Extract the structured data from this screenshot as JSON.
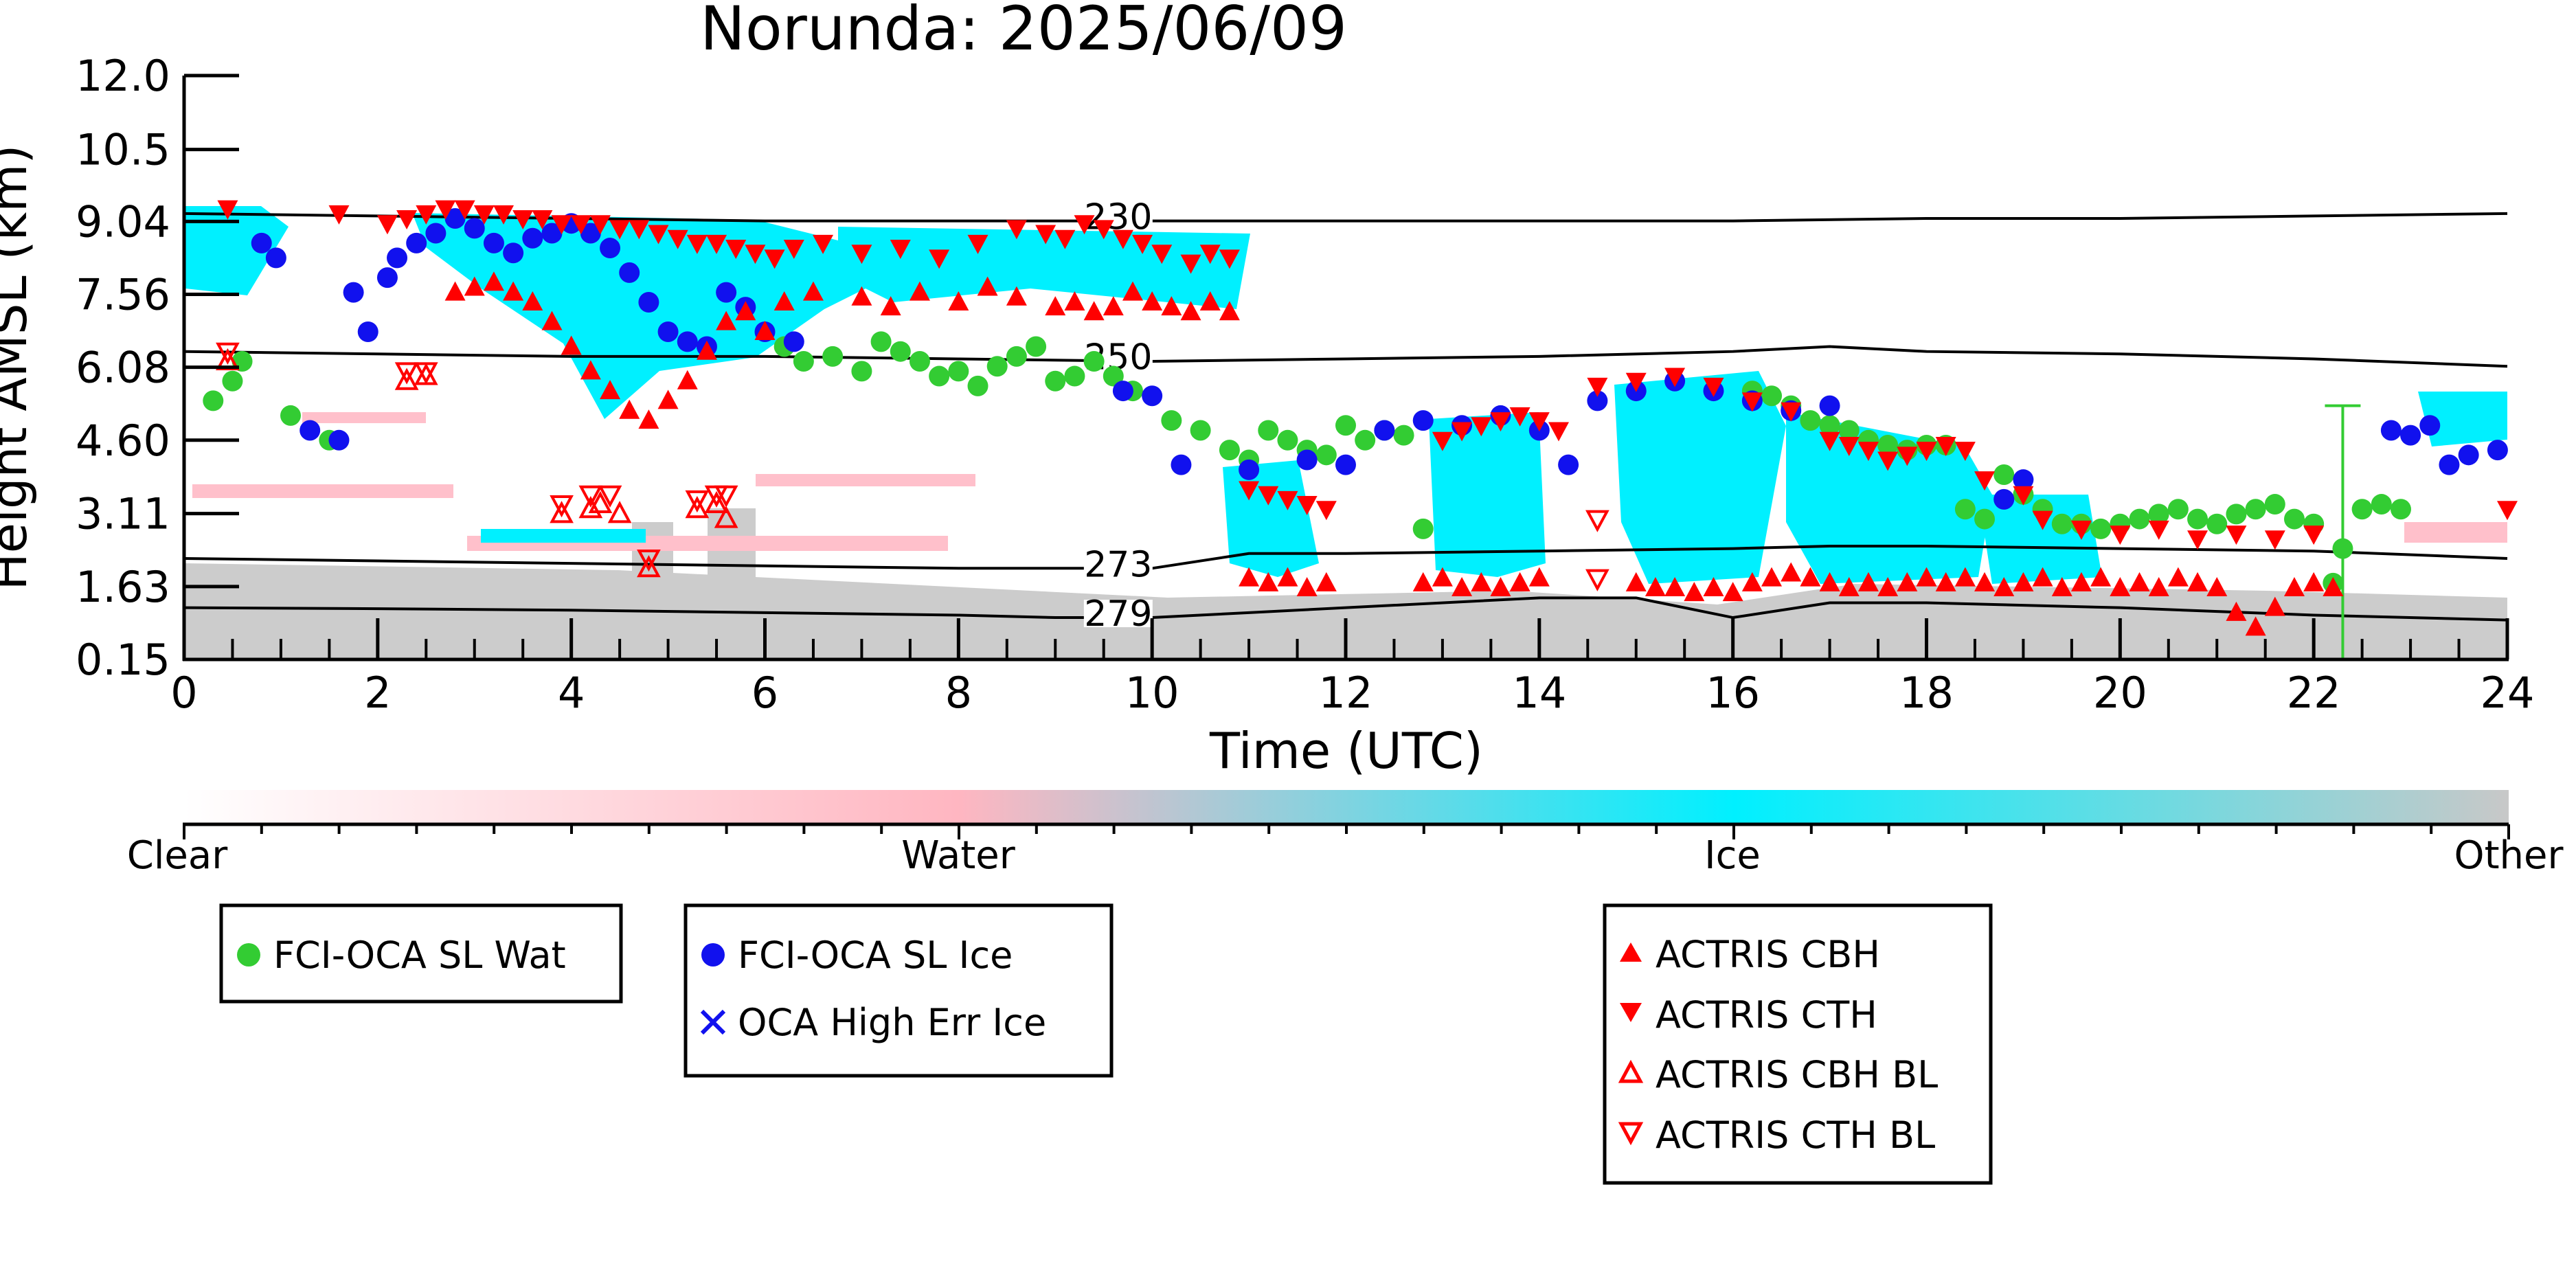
{
  "chart_data": {
    "type": "scatter",
    "title": "Norunda: 2025/06/09",
    "xlabel": "Time (UTC)",
    "ylabel": "Height AMSL (km)",
    "xlim": [
      0,
      24
    ],
    "ylim": [
      0.15,
      12.0
    ],
    "xticks": [
      "0",
      "2",
      "4",
      "6",
      "8",
      "10",
      "12",
      "14",
      "16",
      "18",
      "20",
      "22",
      "24"
    ],
    "yticks": [
      "0.15",
      "1.63",
      "3.11",
      "4.60",
      "6.08",
      "7.56",
      "9.04",
      "10.5",
      "12.0"
    ],
    "colorbar": {
      "labels": [
        "Clear",
        "Water",
        "Ice",
        "Other"
      ],
      "colors": [
        "#ffffff",
        "#ffb6c1",
        "#00f0ff",
        "#c8c8c8"
      ]
    },
    "isotherms": [
      {
        "label": "230",
        "x": [
          0,
          2,
          4,
          6,
          8,
          10,
          12,
          14,
          16,
          18,
          20,
          22,
          24
        ],
        "y": [
          9.2,
          9.15,
          9.1,
          9.05,
          9.05,
          9.05,
          9.05,
          9.05,
          9.05,
          9.1,
          9.1,
          9.15,
          9.2
        ]
      },
      {
        "label": "250",
        "x": [
          0,
          2,
          4,
          6,
          8,
          10,
          12,
          14,
          16,
          17,
          18,
          20,
          22,
          24
        ],
        "y": [
          6.4,
          6.35,
          6.3,
          6.3,
          6.25,
          6.2,
          6.25,
          6.3,
          6.4,
          6.5,
          6.4,
          6.35,
          6.25,
          6.1
        ]
      },
      {
        "label": "273",
        "x": [
          0,
          2,
          4,
          6,
          8,
          10,
          11,
          12,
          14,
          16,
          17,
          18,
          20,
          22,
          24
        ],
        "y": [
          2.2,
          2.15,
          2.1,
          2.05,
          2.0,
          2.0,
          2.3,
          2.3,
          2.35,
          2.4,
          2.45,
          2.45,
          2.4,
          2.35,
          2.2
        ]
      },
      {
        "label": "279",
        "x": [
          0,
          2,
          4,
          6,
          8,
          9,
          10,
          11,
          12,
          14,
          15,
          16,
          17,
          18,
          20,
          22,
          24
        ],
        "y": [
          1.2,
          1.18,
          1.15,
          1.1,
          1.05,
          1.0,
          1.0,
          1.1,
          1.2,
          1.4,
          1.4,
          1.0,
          1.3,
          1.3,
          1.2,
          1.05,
          0.95
        ]
      }
    ],
    "series": [
      {
        "name": "FCI-OCA SL Wat",
        "color": "#33cc33",
        "marker": "circle",
        "x": [
          0.3,
          0.5,
          0.6,
          1.1,
          1.5,
          6.2,
          6.4,
          6.7,
          7.0,
          7.2,
          7.4,
          7.6,
          7.8,
          8.0,
          8.2,
          8.4,
          8.6,
          8.8,
          9.0,
          9.2,
          9.4,
          9.6,
          9.8,
          10.2,
          10.5,
          10.8,
          11.0,
          11.2,
          11.4,
          11.6,
          11.8,
          12.0,
          12.2,
          12.4,
          12.6,
          12.8,
          16.2,
          16.4,
          16.6,
          16.8,
          17.0,
          17.2,
          17.4,
          17.6,
          17.8,
          18.0,
          18.2,
          18.4,
          18.6,
          18.8,
          19.0,
          19.2,
          19.4,
          19.6,
          19.8,
          20.0,
          20.2,
          20.4,
          20.6,
          20.8,
          21.0,
          21.2,
          21.4,
          21.6,
          21.8,
          22.0,
          22.2,
          22.3,
          22.5,
          22.7,
          22.9
        ],
        "y": [
          5.4,
          5.8,
          6.2,
          5.1,
          4.6,
          6.5,
          6.2,
          6.3,
          6.0,
          6.6,
          6.4,
          6.2,
          5.9,
          6.0,
          5.7,
          6.1,
          6.3,
          6.5,
          5.8,
          5.9,
          6.2,
          5.9,
          5.6,
          5.0,
          4.8,
          4.4,
          4.2,
          4.8,
          4.6,
          4.4,
          4.3,
          4.9,
          4.6,
          4.8,
          4.7,
          2.8,
          5.6,
          5.5,
          5.3,
          5.0,
          4.9,
          4.8,
          4.6,
          4.5,
          4.4,
          4.5,
          4.5,
          3.2,
          3.0,
          3.9,
          3.5,
          3.2,
          2.9,
          2.9,
          2.8,
          2.9,
          3.0,
          3.1,
          3.2,
          3.0,
          2.9,
          3.1,
          3.2,
          3.3,
          3.0,
          2.9,
          1.7,
          2.4,
          3.2,
          3.3,
          3.2
        ],
        "errorbars": [
          {
            "x": 22.3,
            "y": 1.7,
            "ylow": 0.15,
            "yhigh": 5.3
          }
        ]
      },
      {
        "name": "FCI-OCA SL Ice",
        "color": "#1111ee",
        "marker": "circle",
        "x": [
          0.8,
          0.95,
          1.3,
          1.6,
          1.75,
          1.9,
          2.1,
          2.2,
          2.4,
          2.6,
          2.8,
          3.0,
          3.2,
          3.4,
          3.6,
          3.8,
          4.0,
          4.2,
          4.4,
          4.6,
          4.8,
          5.0,
          5.2,
          5.4,
          5.6,
          5.8,
          6.0,
          6.3,
          9.7,
          10.0,
          10.3,
          11.0,
          11.6,
          12.0,
          12.4,
          12.8,
          13.2,
          13.6,
          14.0,
          14.3,
          14.6,
          15.0,
          15.4,
          15.8,
          16.2,
          16.6,
          17.0,
          18.8,
          19.0,
          22.8,
          23.0,
          23.2,
          23.4,
          23.6,
          23.9
        ],
        "y": [
          8.6,
          8.3,
          4.8,
          4.6,
          7.6,
          6.8,
          7.9,
          8.3,
          8.6,
          8.8,
          9.1,
          8.9,
          8.6,
          8.4,
          8.7,
          8.8,
          9.0,
          8.8,
          8.5,
          8.0,
          7.4,
          6.8,
          6.6,
          6.5,
          7.6,
          7.3,
          6.8,
          6.6,
          5.6,
          5.5,
          4.1,
          4.0,
          4.2,
          4.1,
          4.8,
          5.0,
          4.9,
          5.1,
          4.8,
          4.1,
          5.4,
          5.6,
          5.8,
          5.6,
          5.4,
          5.2,
          5.3,
          3.4,
          3.8,
          4.8,
          4.7,
          4.9,
          4.1,
          4.3,
          4.4
        ]
      },
      {
        "name": "OCA High Err Ice",
        "color": "#1111ee",
        "marker": "x",
        "x": [],
        "y": []
      },
      {
        "name": "ACTRIS CBH",
        "color": "#ff0000",
        "marker": "triangle-up",
        "x": [
          2.8,
          3.0,
          3.2,
          3.4,
          3.6,
          3.8,
          4.0,
          4.2,
          4.4,
          4.6,
          4.8,
          5.0,
          5.2,
          5.4,
          5.6,
          5.8,
          6.0,
          6.2,
          6.5,
          7.0,
          7.3,
          7.6,
          8.0,
          8.3,
          8.6,
          9.0,
          9.2,
          9.4,
          9.6,
          9.8,
          10.0,
          10.2,
          10.4,
          10.6,
          10.8,
          11.0,
          11.2,
          11.4,
          11.6,
          11.8,
          12.8,
          13.0,
          13.2,
          13.4,
          13.6,
          13.8,
          14.0,
          15.0,
          15.2,
          15.4,
          15.6,
          15.8,
          16.0,
          16.2,
          16.4,
          16.6,
          16.8,
          17.0,
          17.2,
          17.4,
          17.6,
          17.8,
          18.0,
          18.2,
          18.4,
          18.6,
          18.8,
          19.0,
          19.2,
          19.4,
          19.6,
          19.8,
          20.0,
          20.2,
          20.4,
          20.6,
          20.8,
          21.0,
          21.2,
          21.4,
          21.6,
          21.8,
          22.0,
          22.2
        ],
        "y": [
          7.6,
          7.7,
          7.8,
          7.6,
          7.4,
          7.0,
          6.5,
          6.0,
          5.6,
          5.2,
          5.0,
          5.4,
          5.8,
          6.4,
          7.0,
          7.2,
          6.8,
          7.4,
          7.6,
          7.5,
          7.3,
          7.6,
          7.4,
          7.7,
          7.5,
          7.3,
          7.4,
          7.2,
          7.3,
          7.6,
          7.4,
          7.3,
          7.2,
          7.4,
          7.2,
          1.8,
          1.7,
          1.8,
          1.6,
          1.7,
          1.7,
          1.8,
          1.6,
          1.7,
          1.6,
          1.7,
          1.8,
          1.7,
          1.6,
          1.6,
          1.5,
          1.6,
          1.5,
          1.7,
          1.8,
          1.9,
          1.8,
          1.7,
          1.6,
          1.7,
          1.6,
          1.7,
          1.8,
          1.7,
          1.8,
          1.7,
          1.6,
          1.7,
          1.8,
          1.6,
          1.7,
          1.8,
          1.6,
          1.7,
          1.6,
          1.8,
          1.7,
          1.6,
          1.1,
          0.8,
          1.2,
          1.6,
          1.7,
          1.6
        ]
      },
      {
        "name": "ACTRIS CTH",
        "color": "#ff0000",
        "marker": "triangle-down",
        "x": [
          0.45,
          1.6,
          2.1,
          2.3,
          2.5,
          2.7,
          2.9,
          3.1,
          3.3,
          3.5,
          3.7,
          3.9,
          4.1,
          4.3,
          4.5,
          4.7,
          4.9,
          5.1,
          5.3,
          5.5,
          5.7,
          5.9,
          6.1,
          6.3,
          6.6,
          7.0,
          7.4,
          7.8,
          8.2,
          8.6,
          8.9,
          9.1,
          9.3,
          9.5,
          9.7,
          9.9,
          10.1,
          10.4,
          10.6,
          10.8,
          11.0,
          11.2,
          11.4,
          11.6,
          11.8,
          13.0,
          13.2,
          13.4,
          13.6,
          13.8,
          14.0,
          14.2,
          14.6,
          15.0,
          15.4,
          15.8,
          16.2,
          16.6,
          17.0,
          17.2,
          17.4,
          17.6,
          17.8,
          18.0,
          18.2,
          18.4,
          18.6,
          19.0,
          19.2,
          19.6,
          20.0,
          20.4,
          20.8,
          21.2,
          21.6,
          22.0,
          24.0
        ],
        "y": [
          9.3,
          9.2,
          9.0,
          9.1,
          9.2,
          9.3,
          9.3,
          9.2,
          9.2,
          9.1,
          9.1,
          9.0,
          9.0,
          9.0,
          8.9,
          8.9,
          8.8,
          8.7,
          8.6,
          8.6,
          8.5,
          8.4,
          8.3,
          8.5,
          8.6,
          8.4,
          8.5,
          8.3,
          8.6,
          8.9,
          8.8,
          8.7,
          9.0,
          8.9,
          8.7,
          8.6,
          8.4,
          8.2,
          8.4,
          8.3,
          3.6,
          3.5,
          3.4,
          3.3,
          3.2,
          4.6,
          4.8,
          4.9,
          5.0,
          5.1,
          5.0,
          4.8,
          5.7,
          5.8,
          5.9,
          5.7,
          5.4,
          5.2,
          4.6,
          4.5,
          4.4,
          4.2,
          4.3,
          4.4,
          4.5,
          4.4,
          3.8,
          3.5,
          3.0,
          2.8,
          2.7,
          2.8,
          2.6,
          2.7,
          2.6,
          2.7,
          3.2
        ]
      },
      {
        "name": "ACTRIS CBH BL",
        "color": "#ff0000",
        "marker": "triangle-up-open",
        "x": [
          0.45,
          2.3,
          2.5,
          3.9,
          4.2,
          4.3,
          4.5,
          4.8,
          5.3,
          5.5,
          5.6
        ],
        "y": [
          6.2,
          5.8,
          5.9,
          3.1,
          3.2,
          3.3,
          3.1,
          2.0,
          3.2,
          3.3,
          3.0
        ]
      },
      {
        "name": "ACTRIS CTH BL",
        "color": "#ff0000",
        "marker": "triangle-down-open",
        "x": [
          0.45,
          2.3,
          2.5,
          3.9,
          4.2,
          4.4,
          4.8,
          5.3,
          5.5,
          5.6,
          14.6,
          14.6
        ],
        "y": [
          6.4,
          6.0,
          6.0,
          3.3,
          3.5,
          3.5,
          2.2,
          3.4,
          3.5,
          3.5,
          3.0,
          1.8
        ]
      }
    ]
  }
}
